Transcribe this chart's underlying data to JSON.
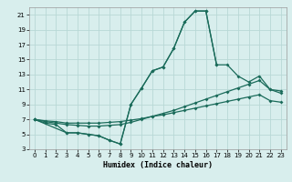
{
  "xlabel": "Humidex (Indice chaleur)",
  "ylabel": "",
  "bg_color": "#d8eeed",
  "grid_color": "#b8d8d6",
  "line_color": "#1a6b5a",
  "xlim": [
    -0.5,
    23.5
  ],
  "ylim": [
    3,
    22
  ],
  "yticks": [
    3,
    5,
    7,
    9,
    11,
    13,
    15,
    17,
    19,
    21
  ],
  "xticks": [
    0,
    1,
    2,
    3,
    4,
    5,
    6,
    7,
    8,
    9,
    10,
    11,
    12,
    13,
    14,
    15,
    16,
    17,
    18,
    19,
    20,
    21,
    22,
    23
  ],
  "curve_main_x": [
    0,
    1,
    2,
    3,
    4,
    5,
    6,
    7,
    8,
    9,
    10,
    11,
    12,
    13,
    14,
    15,
    16,
    17
  ],
  "curve_main_y": [
    7,
    6.5,
    6.3,
    5.2,
    5.2,
    5.0,
    4.8,
    4.2,
    3.7,
    9.0,
    11.2,
    13.5,
    14.0,
    16.5,
    20.0,
    21.5,
    21.5,
    14.3
  ],
  "curve_diag1_x": [
    0,
    1,
    2,
    3,
    4,
    5,
    6,
    7,
    8,
    9,
    10,
    11,
    12,
    13,
    14,
    15,
    16,
    17,
    18,
    19,
    20,
    21,
    22,
    23
  ],
  "curve_diag1_y": [
    7.0,
    6.8,
    6.7,
    6.5,
    6.5,
    6.5,
    6.5,
    6.6,
    6.7,
    6.9,
    7.1,
    7.4,
    7.6,
    7.9,
    8.2,
    8.5,
    8.8,
    9.1,
    9.4,
    9.7,
    10.0,
    10.3,
    9.5,
    9.3
  ],
  "curve_diag2_x": [
    0,
    1,
    2,
    3,
    4,
    5,
    6,
    7,
    8,
    9,
    10,
    11,
    12,
    13,
    14,
    15,
    16,
    17,
    18,
    19,
    20,
    21,
    22,
    23
  ],
  "curve_diag2_y": [
    7.0,
    6.7,
    6.5,
    6.3,
    6.2,
    6.1,
    6.1,
    6.2,
    6.3,
    6.6,
    7.0,
    7.4,
    7.8,
    8.2,
    8.7,
    9.2,
    9.7,
    10.2,
    10.7,
    11.2,
    11.7,
    12.2,
    11.0,
    10.8
  ],
  "curve_secondary_x": [
    0,
    3,
    4,
    5,
    6,
    7,
    8,
    9,
    10,
    11,
    12,
    13,
    14,
    15,
    16,
    17,
    18,
    19,
    20,
    21,
    22,
    23
  ],
  "curve_secondary_y": [
    7.0,
    5.2,
    5.2,
    5.0,
    4.8,
    4.2,
    3.7,
    9.0,
    11.2,
    13.5,
    14.0,
    16.5,
    20.0,
    21.5,
    21.5,
    14.3,
    14.3,
    12.8,
    12.0,
    12.8,
    11.0,
    10.5
  ]
}
